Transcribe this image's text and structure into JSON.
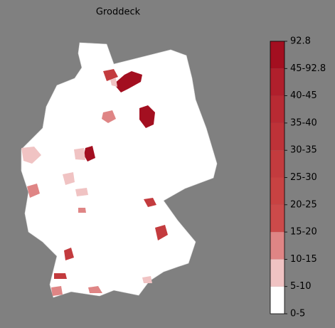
{
  "title": "Groddeck",
  "colorbar": {
    "labels": [
      "0-5",
      "5-10",
      "10-15",
      "15-20",
      "20-25",
      "25-30",
      "30-35",
      "35-40",
      "40-45",
      "45-92.8",
      "92.8"
    ],
    "colors": [
      "#ffffff",
      "#f0c3c3",
      "#df8585",
      "#cc4a4a",
      "#c84242",
      "#c33b3e",
      "#be3238",
      "#b82a33",
      "#b01f2c",
      "#a30f20"
    ]
  }
}
